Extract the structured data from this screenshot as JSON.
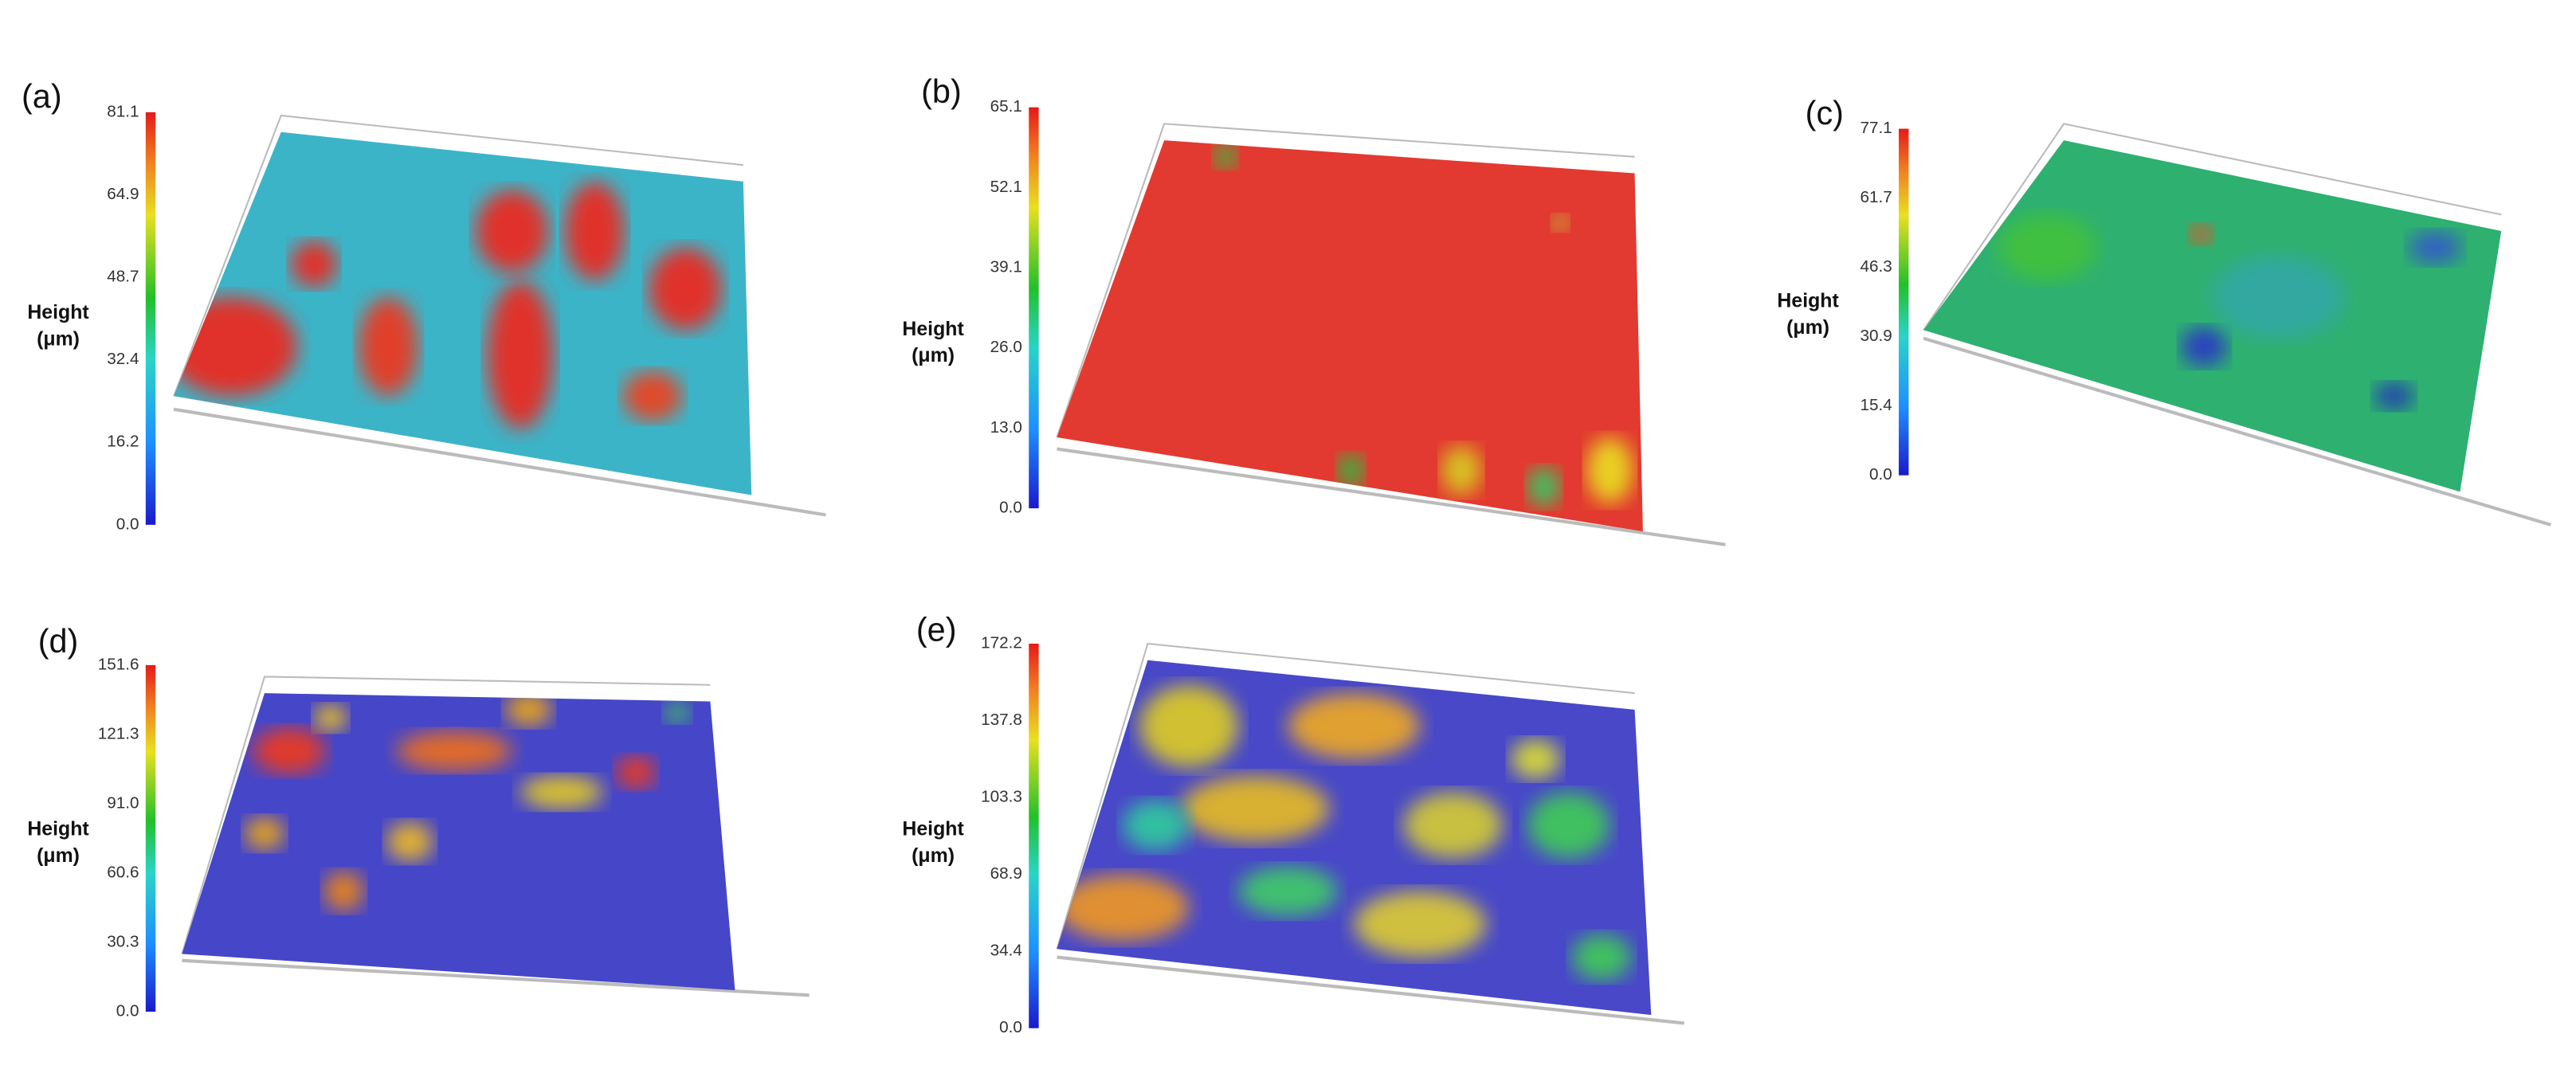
{
  "panels": [
    {
      "label": "(a)",
      "axis_label": "Height",
      "unit": "(μm)",
      "ticks": [
        "0.0",
        "16.2",
        "32.4",
        "48.7",
        "64.9",
        "81.1"
      ]
    },
    {
      "label": "(b)",
      "axis_label": "Height",
      "unit": "(μm)",
      "ticks": [
        "0.0",
        "13.0",
        "26.0",
        "39.1",
        "52.1",
        "65.1"
      ]
    },
    {
      "label": "(c)",
      "axis_label": "Height",
      "unit": "(μm)",
      "ticks": [
        "0.0",
        "15.4",
        "30.9",
        "46.3",
        "61.7",
        "77.1"
      ]
    },
    {
      "label": "(d)",
      "axis_label": "Height",
      "unit": "(μm)",
      "ticks": [
        "0.0",
        "30.3",
        "60.6",
        "91.0",
        "121.3",
        "151.6"
      ]
    },
    {
      "label": "(e)",
      "axis_label": "Height",
      "unit": "(μm)",
      "ticks": [
        "0.0",
        "34.4",
        "68.9",
        "103.3",
        "137.8",
        "172.2"
      ]
    }
  ]
}
